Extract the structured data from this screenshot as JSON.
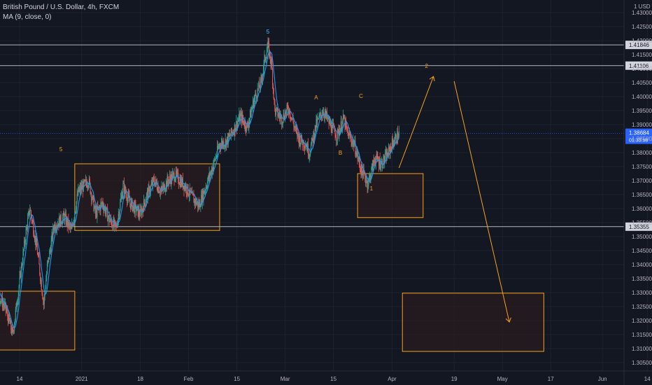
{
  "legend": {
    "symbol": "British Pound / U.S. Dollar, 4h, FXCM",
    "indicator": "MA (9, close, 0)"
  },
  "axis": {
    "currency": "USD",
    "currency_prefix": "1"
  },
  "colors": {
    "background": "#131722",
    "up": "#26a69a",
    "down": "#ef5350",
    "ma": "#2196f3",
    "box_border": "#f7a21b",
    "box_fill": "#2b1c1f",
    "annotation": "#f7a21b",
    "hline": "#b2b5be",
    "grid": "#1e2230",
    "text": "#b2b5be",
    "current_price_tag": "#2962ff"
  },
  "chart_data": {
    "type": "candlestick",
    "x_ticks": [
      "14",
      "2021",
      "18",
      "Feb",
      "15",
      "Mar",
      "15",
      "Apr",
      "19",
      "May",
      "17",
      "Jun",
      "14"
    ],
    "y_ticks": [
      "1.43000",
      "1.42500",
      "1.42000",
      "1.41500",
      "1.41000",
      "1.40500",
      "1.40000",
      "1.39500",
      "1.39000",
      "1.38500",
      "1.38000",
      "1.37500",
      "1.37000",
      "1.36500",
      "1.36000",
      "1.35500",
      "1.35000",
      "1.34500",
      "1.34000",
      "1.33500",
      "1.33000",
      "1.32500",
      "1.32000",
      "1.31500",
      "1.31000",
      "1.30500"
    ],
    "ylim": [
      1.302,
      1.4345
    ],
    "horizontal_levels": [
      {
        "price": 1.41846,
        "label": "1.41846"
      },
      {
        "price": 1.41106,
        "label": "1.41106"
      },
      {
        "price": 1.35355,
        "label": "1.35355"
      }
    ],
    "current_price": {
      "price": 1.38684,
      "label": "1.38684",
      "countdown": "01:33:58"
    },
    "wave_labels": [
      {
        "text": "5",
        "date": "2020-12-26",
        "price": 1.3805
      },
      {
        "text": "5",
        "date": "2021-02-24",
        "price": 1.4225
      },
      {
        "text": "A",
        "date": "2021-03-10",
        "price": 1.399
      },
      {
        "text": "C",
        "date": "2021-03-23",
        "price": 1.3995
      },
      {
        "text": "B",
        "date": "2021-03-17",
        "price": 1.3792
      },
      {
        "text": "1",
        "date": "2021-03-26",
        "price": 1.3665
      },
      {
        "text": "2",
        "date": "2021-04-11",
        "price": 1.4102
      }
    ],
    "boxes": [
      {
        "from": "2020-11-30",
        "to": "2020-12-30",
        "top": 1.3305,
        "bottom": 1.3095
      },
      {
        "from": "2020-12-30",
        "to": "2021-02-10",
        "top": 1.376,
        "bottom": 1.3522
      },
      {
        "from": "2021-03-22",
        "to": "2021-04-10",
        "top": 1.3725,
        "bottom": 1.3568
      },
      {
        "from": "2021-04-04",
        "to": "2021-05-15",
        "top": 1.3298,
        "bottom": 1.309
      }
    ],
    "arrows": [
      {
        "from_date": "2021-04-03",
        "from_price": 1.3745,
        "to_date": "2021-04-13",
        "to_price": 1.4072
      },
      {
        "from_date": "2021-04-19",
        "from_price": 1.4055,
        "to_date": "2021-05-05",
        "to_price": 1.3195
      }
    ],
    "ohlc_path": [
      {
        "date": "2020-11-30",
        "price": 1.338
      },
      {
        "date": "2020-12-03",
        "price": 1.346
      },
      {
        "date": "2020-12-05",
        "price": 1.341
      },
      {
        "date": "2020-12-08",
        "price": 1.329
      },
      {
        "date": "2020-12-10",
        "price": 1.324
      },
      {
        "date": "2020-12-12",
        "price": 1.315
      },
      {
        "date": "2020-12-14",
        "price": 1.334
      },
      {
        "date": "2020-12-16",
        "price": 1.353
      },
      {
        "date": "2020-12-17",
        "price": 1.36
      },
      {
        "date": "2020-12-19",
        "price": 1.346
      },
      {
        "date": "2020-12-21",
        "price": 1.326
      },
      {
        "date": "2020-12-22",
        "price": 1.339
      },
      {
        "date": "2020-12-24",
        "price": 1.354
      },
      {
        "date": "2020-12-27",
        "price": 1.357
      },
      {
        "date": "2020-12-29",
        "price": 1.352
      },
      {
        "date": "2020-12-31",
        "price": 1.366
      },
      {
        "date": "2021-01-03",
        "price": 1.37
      },
      {
        "date": "2021-01-05",
        "price": 1.358
      },
      {
        "date": "2021-01-07",
        "price": 1.362
      },
      {
        "date": "2021-01-09",
        "price": 1.356
      },
      {
        "date": "2021-01-11",
        "price": 1.353
      },
      {
        "date": "2021-01-13",
        "price": 1.368
      },
      {
        "date": "2021-01-15",
        "price": 1.362
      },
      {
        "date": "2021-01-18",
        "price": 1.358
      },
      {
        "date": "2021-01-20",
        "price": 1.365
      },
      {
        "date": "2021-01-22",
        "price": 1.37
      },
      {
        "date": "2021-01-24",
        "price": 1.366
      },
      {
        "date": "2021-01-26",
        "price": 1.37
      },
      {
        "date": "2021-01-28",
        "price": 1.372
      },
      {
        "date": "2021-01-31",
        "price": 1.368
      },
      {
        "date": "2021-02-02",
        "price": 1.364
      },
      {
        "date": "2021-02-04",
        "price": 1.361
      },
      {
        "date": "2021-02-06",
        "price": 1.368
      },
      {
        "date": "2021-02-08",
        "price": 1.375
      },
      {
        "date": "2021-02-10",
        "price": 1.383
      },
      {
        "date": "2021-02-12",
        "price": 1.384
      },
      {
        "date": "2021-02-14",
        "price": 1.388
      },
      {
        "date": "2021-02-16",
        "price": 1.393
      },
      {
        "date": "2021-02-18",
        "price": 1.389
      },
      {
        "date": "2021-02-20",
        "price": 1.399
      },
      {
        "date": "2021-02-22",
        "price": 1.405
      },
      {
        "date": "2021-02-23",
        "price": 1.413
      },
      {
        "date": "2021-02-24",
        "price": 1.418
      },
      {
        "date": "2021-02-25",
        "price": 1.412
      },
      {
        "date": "2021-02-26",
        "price": 1.395
      },
      {
        "date": "2021-02-28",
        "price": 1.392
      },
      {
        "date": "2021-03-02",
        "price": 1.396
      },
      {
        "date": "2021-03-04",
        "price": 1.388
      },
      {
        "date": "2021-03-05",
        "price": 1.385
      },
      {
        "date": "2021-03-07",
        "price": 1.383
      },
      {
        "date": "2021-03-08",
        "price": 1.38
      },
      {
        "date": "2021-03-10",
        "price": 1.39
      },
      {
        "date": "2021-03-12",
        "price": 1.395
      },
      {
        "date": "2021-03-14",
        "price": 1.39
      },
      {
        "date": "2021-03-16",
        "price": 1.386
      },
      {
        "date": "2021-03-18",
        "price": 1.392
      },
      {
        "date": "2021-03-19",
        "price": 1.387
      },
      {
        "date": "2021-03-21",
        "price": 1.383
      },
      {
        "date": "2021-03-23",
        "price": 1.374
      },
      {
        "date": "2021-03-25",
        "price": 1.369
      },
      {
        "date": "2021-03-27",
        "price": 1.378
      },
      {
        "date": "2021-03-29",
        "price": 1.376
      },
      {
        "date": "2021-03-31",
        "price": 1.38
      },
      {
        "date": "2021-04-01",
        "price": 1.383
      },
      {
        "date": "2021-04-03",
        "price": 1.3868
      }
    ]
  }
}
